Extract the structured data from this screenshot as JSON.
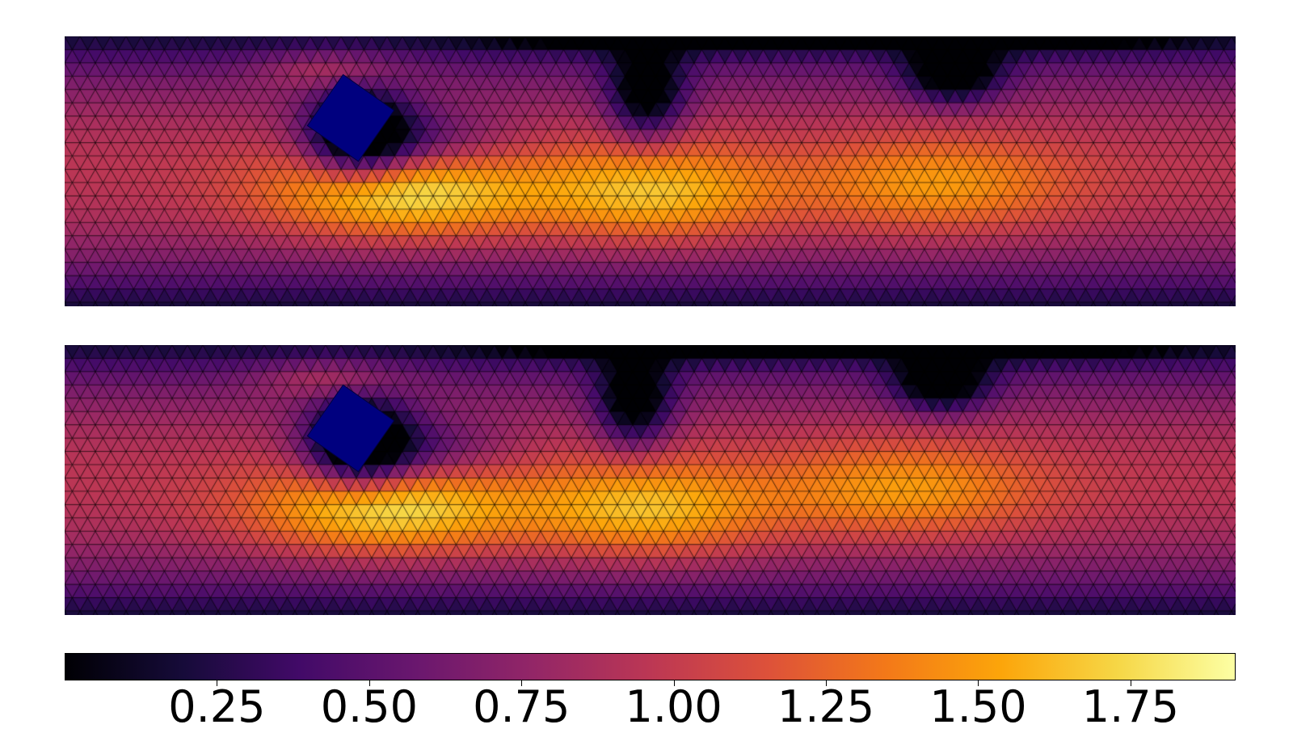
{
  "figure": {
    "panels": [
      {
        "id": "top",
        "obstacle_color": "#00007f"
      },
      {
        "id": "bottom",
        "obstacle_color": "#00007f"
      }
    ],
    "colormap": "inferno",
    "mesh_edge_color": "#000000"
  },
  "colorbar": {
    "vmin": 0.0,
    "vmax": 1.92,
    "ticks": [
      {
        "value": 0.25,
        "label": "0.25"
      },
      {
        "value": 0.5,
        "label": "0.50"
      },
      {
        "value": 0.75,
        "label": "0.75"
      },
      {
        "value": 1.0,
        "label": "1.00"
      },
      {
        "value": 1.25,
        "label": "1.25"
      },
      {
        "value": 1.5,
        "label": "1.50"
      },
      {
        "value": 1.75,
        "label": "1.75"
      }
    ]
  }
}
